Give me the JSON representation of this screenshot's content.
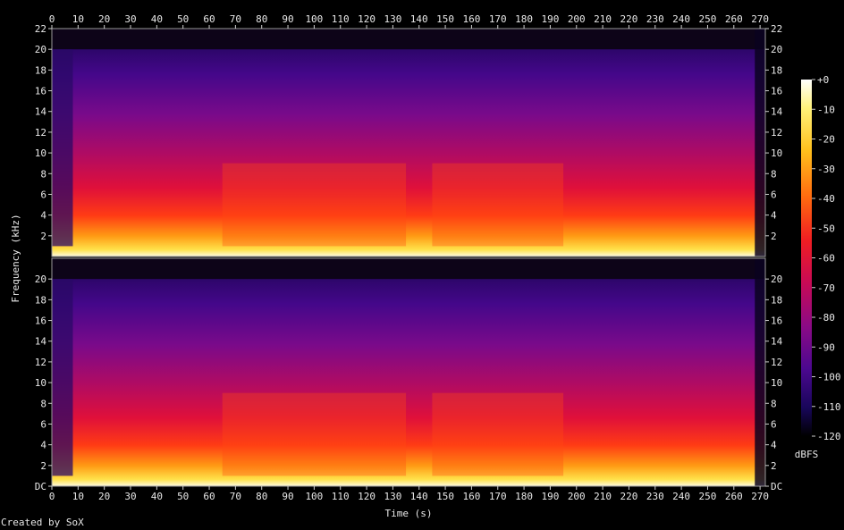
{
  "chart_data": {
    "type": "heatmap",
    "description_kind": "stereo spectrogram",
    "xlabel": "Time (s)",
    "ylabel": "Frequency (kHz)",
    "xlim": [
      0,
      272
    ],
    "ylim": [
      0,
      22
    ],
    "x_ticks": [
      0,
      10,
      20,
      30,
      40,
      50,
      60,
      70,
      80,
      90,
      100,
      110,
      120,
      130,
      140,
      150,
      160,
      170,
      180,
      190,
      200,
      210,
      220,
      230,
      240,
      250,
      260,
      270
    ],
    "y_ticks_top": [
      "2",
      "4",
      "6",
      "8",
      "10",
      "12",
      "14",
      "16",
      "18",
      "20",
      "22"
    ],
    "y_ticks_bottom": [
      "DC",
      "2",
      "4",
      "6",
      "8",
      "10",
      "12",
      "14",
      "16",
      "18",
      "20"
    ],
    "y_tick_values": [
      0,
      2,
      4,
      6,
      8,
      10,
      12,
      14,
      16,
      18,
      20,
      22
    ],
    "channels": 2,
    "colorbar": {
      "label": "dBFS",
      "range": [
        -120,
        0
      ],
      "ticks": [
        "+0",
        "-10",
        "-20",
        "-30",
        "-40",
        "-50",
        "-60",
        "-70",
        "-80",
        "-90",
        "-100",
        "-110",
        "-120"
      ]
    },
    "grid": false,
    "credit": "Created by SoX"
  }
}
